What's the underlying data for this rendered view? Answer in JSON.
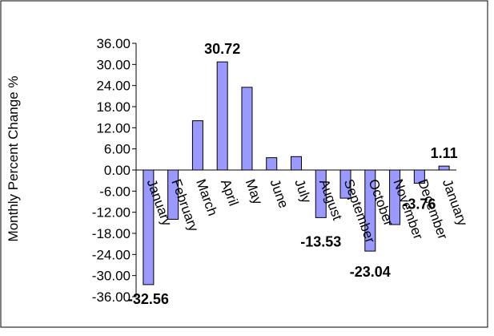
{
  "chart_data": {
    "type": "bar",
    "title": "",
    "xlabel": "",
    "ylabel": "Monthly Percent Change %",
    "ylim": [
      -36,
      36
    ],
    "y_ticks": [
      "36.00",
      "30.00",
      "24.00",
      "18.00",
      "12.00",
      "6.00",
      "0.00",
      "-6.00",
      "-12.00",
      "-18.00",
      "-24.00",
      "-30.00",
      "-36.00"
    ],
    "y_tick_values": [
      36,
      30,
      24,
      18,
      12,
      6,
      0,
      -6,
      -12,
      -18,
      -24,
      -30,
      -36
    ],
    "categories": [
      "January",
      "February",
      "March",
      "April",
      "May",
      "June",
      "July",
      "August",
      "September",
      "October",
      "November",
      "December",
      "January"
    ],
    "series": [
      {
        "values": [
          -32.56,
          -14.0,
          14.0,
          30.72,
          23.5,
          3.5,
          3.8,
          -13.53,
          -8.0,
          -23.04,
          -15.5,
          -3.76,
          1.11
        ]
      }
    ],
    "data_labels": [
      {
        "index": 0,
        "text": "-32.56"
      },
      {
        "index": 3,
        "text": "30.72"
      },
      {
        "index": 7,
        "text": "-13.53"
      },
      {
        "index": 9,
        "text": "-23.04"
      },
      {
        "index": 11,
        "text": "-3.76"
      },
      {
        "index": 12,
        "text": "1.11"
      }
    ],
    "bar_color": "#9999ff",
    "bar_stroke": "#000000",
    "grid": false,
    "legend": "none"
  }
}
